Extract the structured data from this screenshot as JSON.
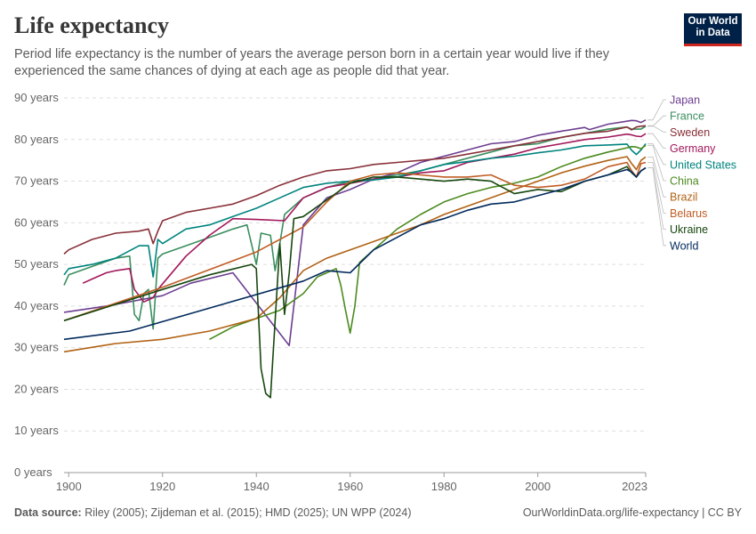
{
  "header": {
    "title": "Life expectancy",
    "subtitle": "Period life expectancy is the number of years the average person born in a certain year would live if they experienced the same chances of dying at each age as people did that year.",
    "logo_line1": "Our World",
    "logo_line2": "in Data"
  },
  "footer": {
    "source_label": "Data source:",
    "source_text": "Riley (2005); Zijdeman et al. (2015); HMD (2025); UN WPP (2024)",
    "right_text": "OurWorldinData.org/life-expectancy | CC BY"
  },
  "chart_data": {
    "type": "line",
    "title": "Life expectancy",
    "xlim": [
      1899,
      2023
    ],
    "ylim": [
      0,
      90
    ],
    "x_ticks": [
      1900,
      1920,
      1940,
      1960,
      1980,
      2000,
      2023
    ],
    "y_ticks": [
      0,
      10,
      20,
      30,
      40,
      50,
      60,
      70,
      80,
      90
    ],
    "y_tick_labels": [
      "0 years",
      "10 years",
      "20 years",
      "30 years",
      "40 years",
      "50 years",
      "60 years",
      "70 years",
      "80 years",
      "90 years"
    ],
    "grid": "horizontal dashed",
    "legend_placement": "right, labels at line ends",
    "series": [
      {
        "name": "Japan",
        "color": "#6d3e91",
        "x": [
          1899,
          1908,
          1920,
          1926,
          1935,
          1947,
          1950,
          1955,
          1960,
          1965,
          1970,
          1975,
          1980,
          1985,
          1990,
          1995,
          2000,
          2005,
          2010,
          2011,
          2015,
          2019,
          2020,
          2021,
          2022,
          2023
        ],
        "y": [
          38.5,
          40,
          42.5,
          45.5,
          48,
          30.5,
          59.5,
          66,
          68,
          70.5,
          72,
          74.5,
          76,
          77.5,
          79,
          79.5,
          81,
          82,
          82.9,
          82.4,
          83.7,
          84.4,
          84.6,
          84.5,
          84.1,
          84.7
        ]
      },
      {
        "name": "France",
        "color": "#3a8e5e",
        "x": [
          1899,
          1900,
          1905,
          1910,
          1913,
          1914,
          1915,
          1916,
          1917,
          1918,
          1919,
          1920,
          1925,
          1930,
          1935,
          1938,
          1940,
          1941,
          1943,
          1944,
          1945,
          1946,
          1950,
          1955,
          1960,
          1965,
          1970,
          1975,
          1980,
          1985,
          1990,
          1995,
          2000,
          2005,
          2010,
          2015,
          2019,
          2020,
          2021,
          2022,
          2023
        ],
        "y": [
          45,
          47.5,
          49.5,
          51.5,
          52,
          38,
          36.5,
          43,
          44,
          34.5,
          51.5,
          52.5,
          54.5,
          56.5,
          58.5,
          59.5,
          50,
          57.5,
          57,
          48.5,
          55,
          62,
          66,
          68.5,
          70,
          70.5,
          71.5,
          72.5,
          74,
          75.5,
          77,
          78.5,
          79,
          80.5,
          81.5,
          82.5,
          83,
          82.5,
          82.5,
          82.5,
          83.2
        ]
      },
      {
        "name": "Sweden",
        "color": "#883039",
        "x": [
          1899,
          1900,
          1905,
          1910,
          1915,
          1917,
          1918,
          1919,
          1920,
          1925,
          1930,
          1935,
          1940,
          1945,
          1950,
          1955,
          1960,
          1965,
          1970,
          1975,
          1980,
          1985,
          1990,
          1995,
          2000,
          2005,
          2010,
          2015,
          2019,
          2020,
          2021,
          2022,
          2023
        ],
        "y": [
          52.5,
          53.5,
          56,
          57.5,
          58,
          58.5,
          55,
          58,
          60.5,
          62.5,
          63.5,
          64.5,
          66.5,
          69,
          71,
          72.5,
          73,
          74,
          74.5,
          75,
          75.5,
          76.5,
          77.5,
          78.5,
          79.5,
          80.5,
          81.5,
          82,
          83,
          82.3,
          83,
          83.2,
          83.3
        ]
      },
      {
        "name": "Germany",
        "color": "#a2185b",
        "x": [
          1903,
          1905,
          1908,
          1910,
          1913,
          1914,
          1916,
          1918,
          1919,
          1925,
          1930,
          1935,
          1940,
          1946,
          1950,
          1955,
          1960,
          1965,
          1970,
          1975,
          1980,
          1985,
          1990,
          1995,
          2000,
          2005,
          2010,
          2015,
          2019,
          2020,
          2021,
          2022,
          2023
        ],
        "y": [
          45.5,
          46.5,
          48,
          48.5,
          49,
          44,
          41,
          42,
          44,
          52,
          57,
          61,
          60.8,
          60.5,
          66,
          68.5,
          69.5,
          70.5,
          71,
          72,
          72.5,
          74.5,
          75.5,
          76.5,
          78,
          79,
          80,
          80.6,
          81.3,
          81.1,
          80.8,
          80.7,
          81.4
        ]
      },
      {
        "name": "United States",
        "color": "#00847e",
        "x": [
          1899,
          1900,
          1905,
          1910,
          1915,
          1917,
          1918,
          1919,
          1920,
          1925,
          1930,
          1935,
          1940,
          1945,
          1950,
          1955,
          1960,
          1965,
          1970,
          1975,
          1980,
          1985,
          1990,
          1995,
          2000,
          2005,
          2010,
          2015,
          2019,
          2020,
          2021,
          2022,
          2023
        ],
        "y": [
          47.5,
          49,
          50,
          51.5,
          54.5,
          54.5,
          47,
          56,
          55,
          58.5,
          59.5,
          61.5,
          63.5,
          66,
          68.5,
          69.5,
          70,
          70.3,
          71,
          72.5,
          74,
          74.7,
          75.5,
          76,
          76.8,
          77.5,
          78.5,
          78.7,
          78.9,
          77.4,
          76.4,
          77.5,
          79
        ]
      },
      {
        "name": "China",
        "color": "#4c8a1f",
        "x": [
          1930,
          1935,
          1940,
          1945,
          1950,
          1953,
          1955,
          1957,
          1958,
          1959,
          1960,
          1961,
          1962,
          1965,
          1970,
          1975,
          1980,
          1985,
          1990,
          1995,
          2000,
          2005,
          2010,
          2015,
          2019,
          2020,
          2021,
          2022,
          2023
        ],
        "y": [
          32,
          35,
          37,
          39,
          43,
          47,
          48,
          49,
          45,
          39,
          33.5,
          40,
          50.5,
          53.5,
          58.5,
          62,
          65,
          67,
          68.5,
          69.5,
          71,
          73.5,
          75.5,
          77,
          78,
          78.3,
          78.2,
          77.8,
          78.6
        ]
      },
      {
        "name": "Brazil",
        "color": "#b16214",
        "x": [
          1899,
          1910,
          1920,
          1930,
          1940,
          1945,
          1950,
          1955,
          1960,
          1965,
          1970,
          1975,
          1980,
          1985,
          1990,
          1995,
          2000,
          2005,
          2010,
          2015,
          2019,
          2020,
          2021,
          2022,
          2023
        ],
        "y": [
          29,
          31,
          32,
          34,
          37,
          42,
          48.5,
          51.5,
          53.5,
          55.5,
          57.5,
          59.5,
          62,
          64,
          66,
          68,
          70,
          72,
          73.6,
          75,
          75.9,
          74.2,
          72.8,
          75,
          75.8
        ]
      },
      {
        "name": "Belarus",
        "color": "#c15d25",
        "x": [
          1899,
          1920,
          1940,
          1950,
          1955,
          1960,
          1965,
          1970,
          1975,
          1980,
          1985,
          1990,
          1995,
          2000,
          2005,
          2010,
          2015,
          2019,
          2020,
          2021,
          2022,
          2023
        ],
        "y": [
          36.5,
          44.5,
          53,
          59,
          65,
          70,
          71.5,
          72,
          71.5,
          71,
          71,
          71.5,
          69,
          68.5,
          69,
          70.5,
          73.5,
          74.5,
          72.5,
          71,
          74.2,
          74.5
        ]
      },
      {
        "name": "Ukraine",
        "color": "#18470f",
        "x": [
          1899,
          1920,
          1930,
          1939,
          1940,
          1941,
          1942,
          1943,
          1945,
          1946,
          1947,
          1948,
          1950,
          1955,
          1960,
          1965,
          1970,
          1975,
          1980,
          1985,
          1990,
          1995,
          2000,
          2005,
          2010,
          2015,
          2019,
          2020,
          2021,
          2022,
          2023
        ],
        "y": [
          36.5,
          44,
          47.5,
          50,
          49,
          25,
          19,
          18,
          55,
          38,
          48,
          61,
          61.5,
          65.5,
          69.5,
          71,
          71,
          70.5,
          70,
          70.5,
          70,
          67,
          68,
          67.5,
          70,
          71.5,
          73.5,
          72,
          71,
          72.5,
          73.2
        ]
      },
      {
        "name": "World",
        "color": "#00295b",
        "x": [
          1899,
          1913,
          1950,
          1955,
          1960,
          1965,
          1970,
          1975,
          1980,
          1985,
          1990,
          1995,
          2000,
          2005,
          2010,
          2015,
          2019,
          2020,
          2021,
          2022,
          2023
        ],
        "y": [
          32,
          34,
          46,
          48.5,
          48,
          53.5,
          56.5,
          59.5,
          61,
          63,
          64.5,
          65,
          66.5,
          68,
          70,
          71.5,
          72.8,
          72.2,
          71,
          72.5,
          73.2
        ]
      }
    ]
  }
}
